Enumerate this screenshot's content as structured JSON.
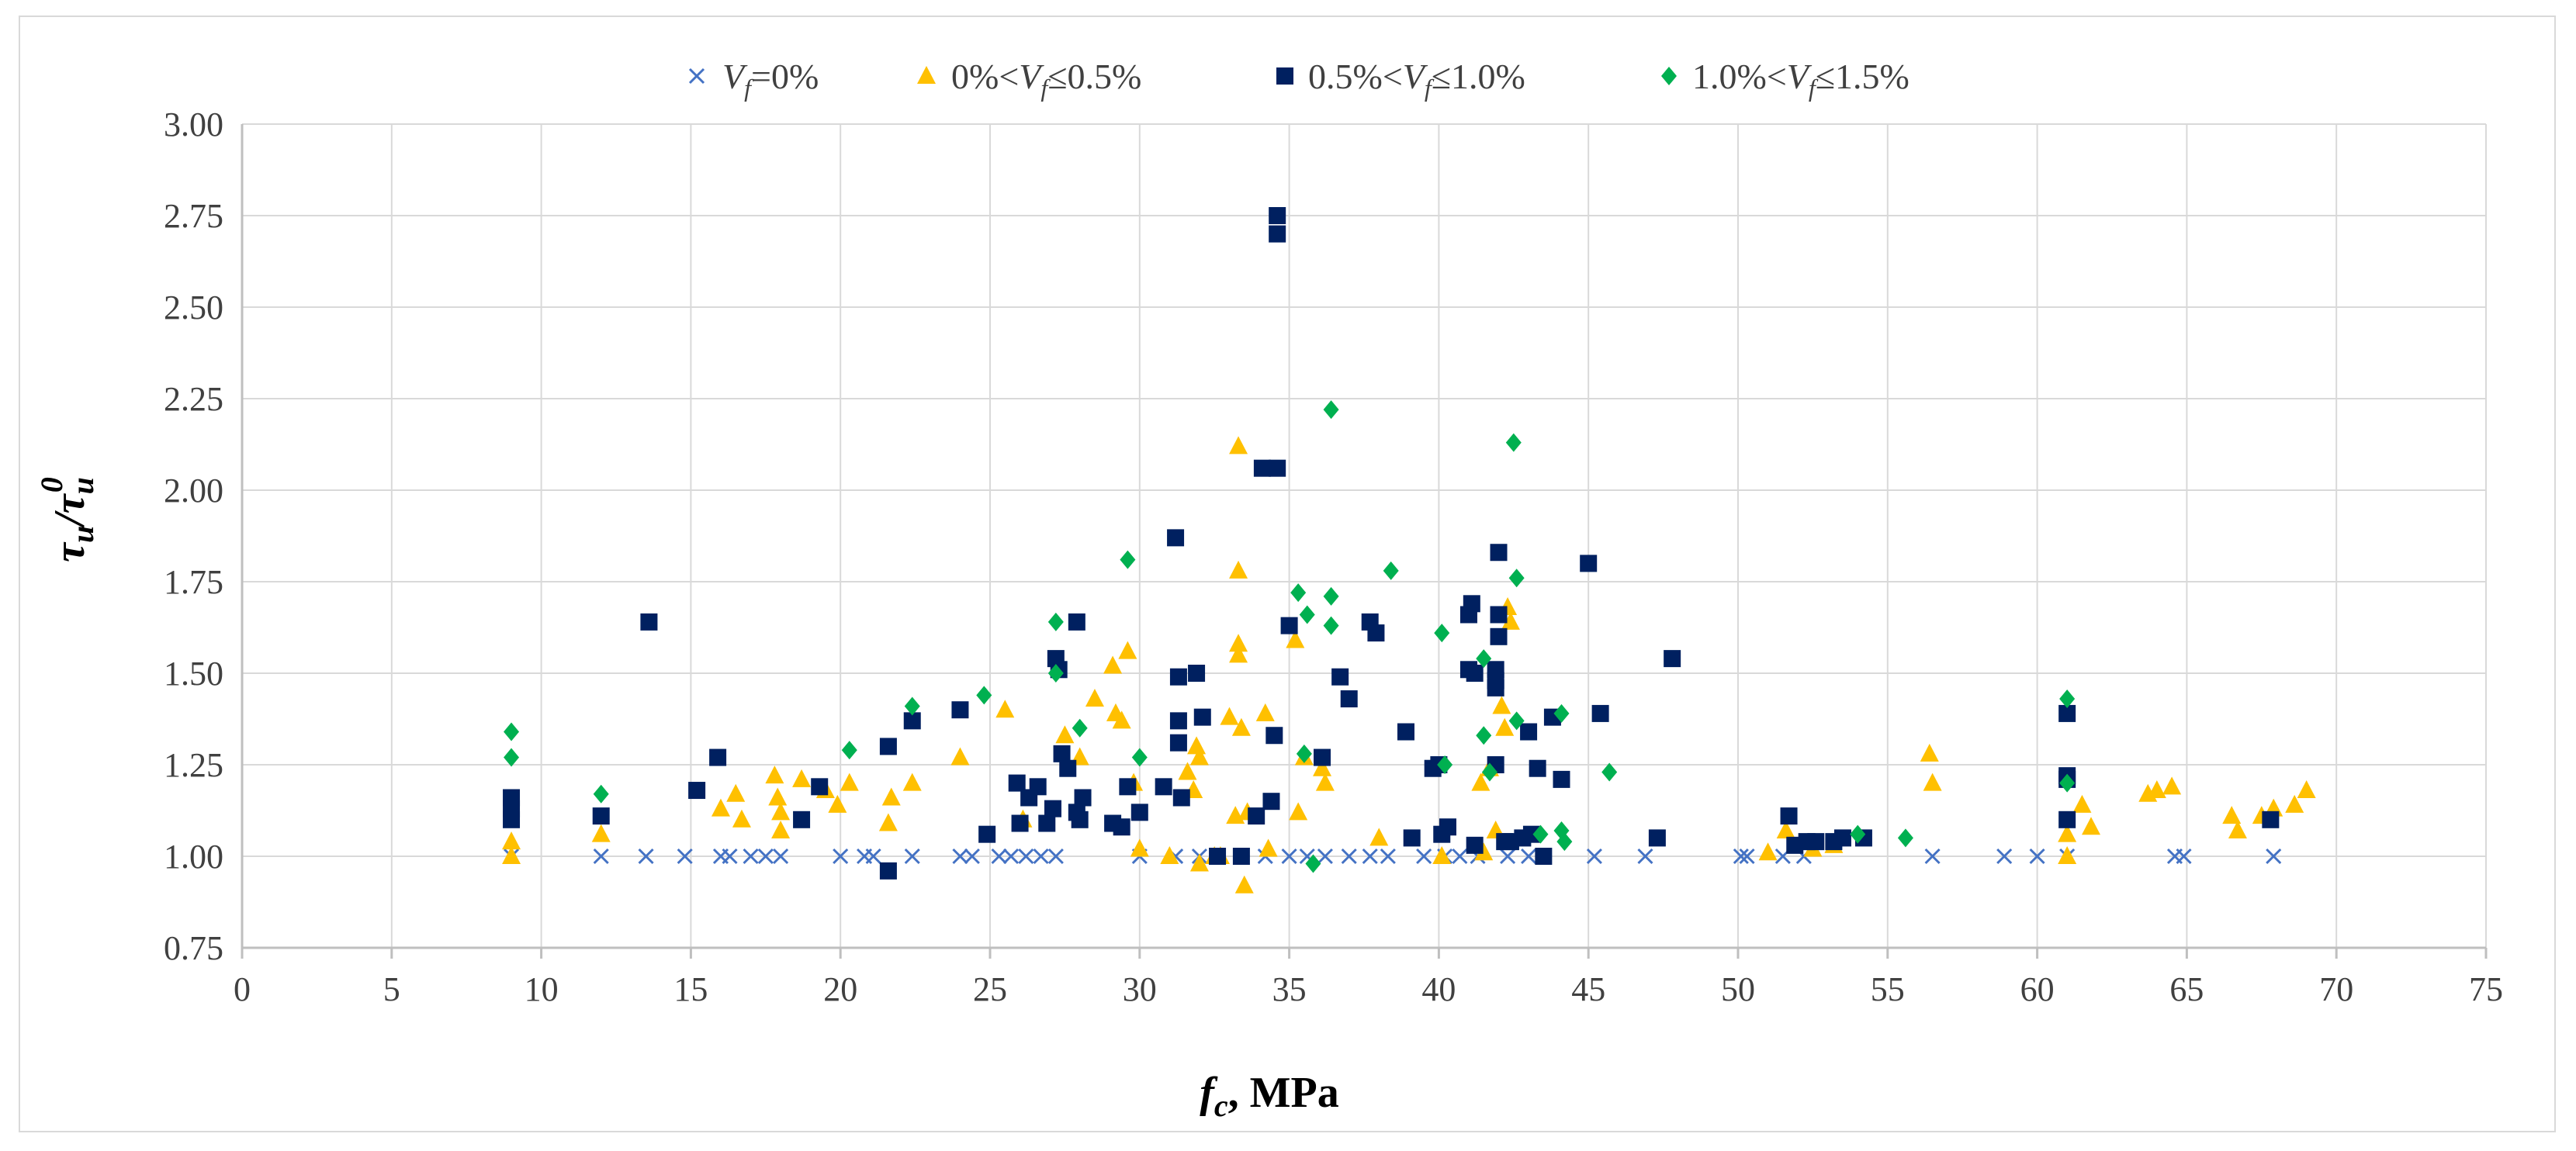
{
  "chart_data": {
    "type": "scatter",
    "title": "",
    "xlabel": "f_c, MPa",
    "xlabel_italic": "f",
    "xlabel_sub": "c",
    "xlabel_rest": ", MPa",
    "ylabel": "τu/τu0",
    "ylabel_main": "τ",
    "ylabel_sub": "u",
    "ylabel_sup": "0",
    "xlim": [
      0,
      75
    ],
    "ylim": [
      0.75,
      3.0
    ],
    "xticks": [
      0,
      5,
      10,
      15,
      20,
      25,
      30,
      35,
      40,
      45,
      50,
      55,
      60,
      65,
      70,
      75
    ],
    "yticks": [
      0.75,
      1.0,
      1.25,
      1.5,
      1.75,
      2.0,
      2.25,
      2.5,
      2.75,
      3.0
    ],
    "xtick_labels": [
      "0",
      "5",
      "10",
      "15",
      "20",
      "25",
      "30",
      "35",
      "40",
      "45",
      "50",
      "55",
      "60",
      "65",
      "70",
      "75"
    ],
    "ytick_labels": [
      "0.75",
      "1.00",
      "1.25",
      "1.50",
      "1.75",
      "2.00",
      "2.25",
      "2.50",
      "2.75",
      "3.00"
    ],
    "grid": true,
    "legend_position": "top-center",
    "series": [
      {
        "name": "Vf=0%",
        "legend_main": "V",
        "legend_sub": "f",
        "legend_rest": "=0%",
        "marker": "x",
        "color": "#4472c4",
        "points": [
          [
            9,
            1.0
          ],
          [
            12,
            1.0
          ],
          [
            13.5,
            1.0
          ],
          [
            14.8,
            1.0
          ],
          [
            16,
            1.0
          ],
          [
            16.3,
            1.0
          ],
          [
            17,
            1.0
          ],
          [
            17.5,
            1.0
          ],
          [
            18,
            1.0
          ],
          [
            20,
            1.0
          ],
          [
            20.8,
            1.0
          ],
          [
            21.1,
            1.0
          ],
          [
            22.4,
            1.0
          ],
          [
            24,
            1.0
          ],
          [
            24.4,
            1.0
          ],
          [
            25.3,
            1.0
          ],
          [
            25.7,
            1.0
          ],
          [
            26.2,
            1.0
          ],
          [
            26.7,
            1.0
          ],
          [
            27.2,
            1.0
          ],
          [
            30,
            1.0
          ],
          [
            31.2,
            1.0
          ],
          [
            32,
            1.0
          ],
          [
            32.6,
            1.0
          ],
          [
            33.4,
            1.0
          ],
          [
            34.2,
            1.0
          ],
          [
            35,
            1.0
          ],
          [
            35.6,
            1.0
          ],
          [
            36.2,
            1.0
          ],
          [
            37,
            1.0
          ],
          [
            37.7,
            1.0
          ],
          [
            38.3,
            1.0
          ],
          [
            39.5,
            1.0
          ],
          [
            40.2,
            1.0
          ],
          [
            40.7,
            1.0
          ],
          [
            41.3,
            1.0
          ],
          [
            42.3,
            1.0
          ],
          [
            43,
            1.0
          ],
          [
            45.2,
            1.0
          ],
          [
            46.9,
            1.0
          ],
          [
            50.1,
            1.0
          ],
          [
            50.3,
            1.0
          ],
          [
            51.5,
            1.0
          ],
          [
            52.2,
            1.0
          ],
          [
            56.5,
            1.0
          ],
          [
            58.9,
            1.0
          ],
          [
            60,
            1.0
          ],
          [
            61,
            1.0
          ],
          [
            64.6,
            1.0
          ],
          [
            64.9,
            1.0
          ],
          [
            67.9,
            1.0
          ]
        ]
      },
      {
        "name": "0%<Vf≤0.5%",
        "legend_pre": "0%<",
        "legend_main": "V",
        "legend_sub": "f",
        "legend_rest": "≤0.5%",
        "marker": "triangle",
        "color": "#ffc000",
        "points": [
          [
            9,
            1.0
          ],
          [
            9,
            1.04
          ],
          [
            12,
            1.06
          ],
          [
            16,
            1.13
          ],
          [
            16.5,
            1.17
          ],
          [
            16.7,
            1.1
          ],
          [
            17.8,
            1.22
          ],
          [
            17.9,
            1.16
          ],
          [
            18,
            1.07
          ],
          [
            18,
            1.12
          ],
          [
            18.7,
            1.21
          ],
          [
            19.5,
            1.18
          ],
          [
            19.9,
            1.14
          ],
          [
            20.3,
            1.2
          ],
          [
            21.6,
            1.09
          ],
          [
            21.7,
            1.16
          ],
          [
            22.4,
            1.2
          ],
          [
            24,
            1.27
          ],
          [
            25.5,
            1.4
          ],
          [
            26.1,
            1.1
          ],
          [
            27.5,
            1.33
          ],
          [
            28,
            1.27
          ],
          [
            28.5,
            1.43
          ],
          [
            29.1,
            1.52
          ],
          [
            29.2,
            1.39
          ],
          [
            29.4,
            1.37
          ],
          [
            29.6,
            1.56
          ],
          [
            29.8,
            1.2
          ],
          [
            30,
            1.02
          ],
          [
            31,
            1.0
          ],
          [
            31.6,
            1.23
          ],
          [
            31.8,
            1.18
          ],
          [
            31.9,
            1.3
          ],
          [
            32,
            1.27
          ],
          [
            32,
            0.98
          ],
          [
            32.5,
            1.0
          ],
          [
            32.7,
            1.0
          ],
          [
            33,
            1.38
          ],
          [
            33.2,
            1.11
          ],
          [
            33.3,
            2.12
          ],
          [
            33.3,
            1.78
          ],
          [
            33.3,
            1.58
          ],
          [
            33.3,
            1.55
          ],
          [
            33.4,
            1.35
          ],
          [
            33.5,
            0.92
          ],
          [
            33.6,
            1.12
          ],
          [
            34.2,
            1.39
          ],
          [
            34.3,
            1.02
          ],
          [
            35.2,
            1.59
          ],
          [
            35.3,
            1.12
          ],
          [
            35.5,
            1.27
          ],
          [
            36.1,
            1.24
          ],
          [
            36.2,
            1.2
          ],
          [
            38,
            1.05
          ],
          [
            40.1,
            1.0
          ],
          [
            41.4,
            1.2
          ],
          [
            41.5,
            1.01
          ],
          [
            41.7,
            1.24
          ],
          [
            41.9,
            1.07
          ],
          [
            42.1,
            1.41
          ],
          [
            42.2,
            1.35
          ],
          [
            42.3,
            1.68
          ],
          [
            42.4,
            1.64
          ],
          [
            51,
            1.01
          ],
          [
            51.6,
            1.07
          ],
          [
            52.5,
            1.02
          ],
          [
            53.2,
            1.03
          ],
          [
            56.4,
            1.28
          ],
          [
            56.5,
            1.2
          ],
          [
            61,
            1.0
          ],
          [
            61,
            1.06
          ],
          [
            61.5,
            1.14
          ],
          [
            61.8,
            1.08
          ],
          [
            63.7,
            1.17
          ],
          [
            64,
            1.18
          ],
          [
            64.5,
            1.19
          ],
          [
            66.5,
            1.11
          ],
          [
            66.7,
            1.07
          ],
          [
            67.5,
            1.11
          ],
          [
            67.9,
            1.13
          ],
          [
            68.6,
            1.14
          ],
          [
            69,
            1.18
          ]
        ]
      },
      {
        "name": "0.5%<Vf≤1.0%",
        "legend_pre": "0.5%<",
        "legend_main": "V",
        "legend_sub": "f",
        "legend_rest": "≤1.0%",
        "marker": "square",
        "color": "#002060",
        "points": [
          [
            9,
            1.16
          ],
          [
            9,
            1.13
          ],
          [
            9,
            1.1
          ],
          [
            12,
            1.11
          ],
          [
            13.6,
            1.64
          ],
          [
            15.2,
            1.18
          ],
          [
            15.9,
            1.27
          ],
          [
            18.7,
            1.1
          ],
          [
            19.3,
            1.19
          ],
          [
            21.6,
            1.3
          ],
          [
            21.6,
            0.96
          ],
          [
            22.4,
            1.37
          ],
          [
            24,
            1.4
          ],
          [
            24.9,
            1.06
          ],
          [
            25.9,
            1.2
          ],
          [
            26,
            1.09
          ],
          [
            26.3,
            1.16
          ],
          [
            26.6,
            1.19
          ],
          [
            26.9,
            1.09
          ],
          [
            27.1,
            1.13
          ],
          [
            27.2,
            1.54
          ],
          [
            27.3,
            1.51
          ],
          [
            27.4,
            1.28
          ],
          [
            27.6,
            1.24
          ],
          [
            27.9,
            1.64
          ],
          [
            27.9,
            1.12
          ],
          [
            28,
            1.1
          ],
          [
            28.1,
            1.16
          ],
          [
            29.1,
            1.09
          ],
          [
            29.4,
            1.08
          ],
          [
            29.6,
            1.19
          ],
          [
            30,
            1.12
          ],
          [
            30.8,
            1.19
          ],
          [
            31.2,
            1.87
          ],
          [
            31.3,
            1.49
          ],
          [
            31.3,
            1.37
          ],
          [
            31.3,
            1.31
          ],
          [
            31.4,
            1.16
          ],
          [
            31.9,
            1.5
          ],
          [
            32.1,
            1.38
          ],
          [
            32.6,
            1.0
          ],
          [
            33.4,
            1.0
          ],
          [
            33.9,
            1.11
          ],
          [
            34.1,
            2.06
          ],
          [
            34.4,
            1.15
          ],
          [
            34.5,
            1.33
          ],
          [
            34.6,
            2.7
          ],
          [
            34.6,
            2.75
          ],
          [
            34.6,
            2.06
          ],
          [
            35,
            1.63
          ],
          [
            36.1,
            1.27
          ],
          [
            36.7,
            1.49
          ],
          [
            37,
            1.43
          ],
          [
            37.7,
            1.64
          ],
          [
            37.9,
            1.61
          ],
          [
            38.9,
            1.34
          ],
          [
            39.1,
            1.05
          ],
          [
            39.8,
            1.24
          ],
          [
            40,
            1.25
          ],
          [
            40.1,
            1.06
          ],
          [
            40.3,
            1.08
          ],
          [
            41,
            1.66
          ],
          [
            41,
            1.51
          ],
          [
            41.1,
            1.69
          ],
          [
            41.2,
            1.5
          ],
          [
            41.2,
            1.03
          ],
          [
            41.9,
            1.51
          ],
          [
            41.9,
            1.48
          ],
          [
            41.9,
            1.46
          ],
          [
            41.9,
            1.25
          ],
          [
            42,
            1.83
          ],
          [
            42,
            1.66
          ],
          [
            42,
            1.6
          ],
          [
            42.2,
            1.04
          ],
          [
            42.4,
            1.04
          ],
          [
            42.8,
            1.05
          ],
          [
            43,
            1.34
          ],
          [
            43.1,
            1.06
          ],
          [
            43.3,
            1.24
          ],
          [
            43.5,
            1.0
          ],
          [
            43.8,
            1.38
          ],
          [
            44.1,
            1.21
          ],
          [
            45,
            1.8
          ],
          [
            45.4,
            1.39
          ],
          [
            47.3,
            1.05
          ],
          [
            47.8,
            1.54
          ],
          [
            51.7,
            1.11
          ],
          [
            51.9,
            1.03
          ],
          [
            52.3,
            1.04
          ],
          [
            52.6,
            1.04
          ],
          [
            53.2,
            1.04
          ],
          [
            53.5,
            1.05
          ],
          [
            54.2,
            1.05
          ],
          [
            61,
            1.39
          ],
          [
            61,
            1.22
          ],
          [
            61,
            1.21
          ],
          [
            61,
            1.1
          ],
          [
            67.8,
            1.1
          ]
        ]
      },
      {
        "name": "1.0%<Vf≤1.5%",
        "legend_pre": "1.0%<",
        "legend_main": "V",
        "legend_sub": "f",
        "legend_rest": "≤1.5%",
        "marker": "diamond",
        "color": "#00b050",
        "points": [
          [
            9,
            1.34
          ],
          [
            9,
            1.27
          ],
          [
            12,
            1.17
          ],
          [
            20.3,
            1.29
          ],
          [
            22.4,
            1.41
          ],
          [
            24.8,
            1.44
          ],
          [
            27.2,
            1.64
          ],
          [
            27.2,
            1.5
          ],
          [
            28,
            1.35
          ],
          [
            29.6,
            1.81
          ],
          [
            30,
            1.27
          ],
          [
            35.3,
            1.72
          ],
          [
            35.5,
            1.28
          ],
          [
            35.6,
            1.66
          ],
          [
            35.8,
            0.98
          ],
          [
            36.4,
            2.22
          ],
          [
            36.4,
            1.71
          ],
          [
            36.4,
            1.63
          ],
          [
            38.4,
            1.78
          ],
          [
            40.1,
            1.61
          ],
          [
            40.2,
            1.25
          ],
          [
            41.5,
            1.54
          ],
          [
            41.5,
            1.33
          ],
          [
            41.7,
            1.23
          ],
          [
            42.5,
            2.13
          ],
          [
            42.6,
            1.76
          ],
          [
            42.6,
            1.37
          ],
          [
            43.4,
            1.06
          ],
          [
            44.1,
            1.39
          ],
          [
            44.1,
            1.07
          ],
          [
            44.2,
            1.04
          ],
          [
            45.7,
            1.23
          ],
          [
            54,
            1.06
          ],
          [
            55.6,
            1.05
          ],
          [
            61,
            1.43
          ],
          [
            61,
            1.2
          ]
        ]
      }
    ]
  }
}
